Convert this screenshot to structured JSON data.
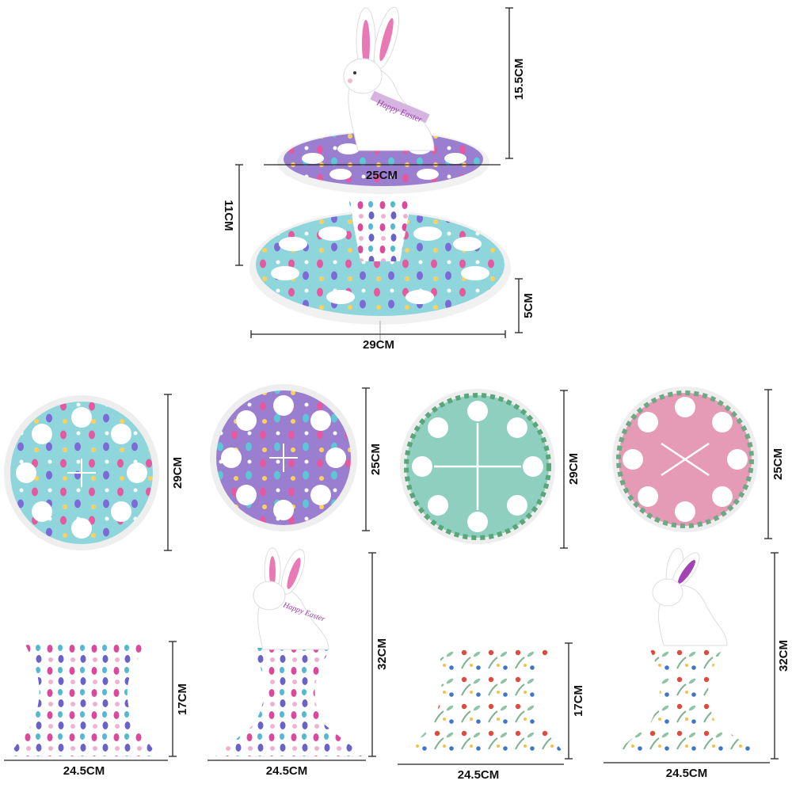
{
  "assembled": {
    "topper_text": "Happy Easter",
    "dims": {
      "topper_height": "15.5CM",
      "top_tier_diameter": "25CM",
      "tier_gap": "11CM",
      "base_height": "5CM",
      "bottom_tier_diameter": "29CM"
    }
  },
  "plates": [
    {
      "name": "blue-egg-plate",
      "size": "29CM"
    },
    {
      "name": "purple-egg-plate",
      "size": "25CM"
    },
    {
      "name": "mint-floral-plate",
      "size": "29CM"
    },
    {
      "name": "pink-floral-plate",
      "size": "25CM"
    }
  ],
  "stands": [
    {
      "name": "egg-base-stand",
      "height": "17CM",
      "width": "24.5CM"
    },
    {
      "name": "egg-bunny-stand",
      "height": "32CM",
      "width": "24.5CM",
      "topper_text": "Happy Easter"
    },
    {
      "name": "floral-base-stand",
      "height": "17CM",
      "width": "24.5CM"
    },
    {
      "name": "floral-bunny-stand",
      "height": "32CM",
      "width": "24.5CM"
    }
  ],
  "colors": {
    "blue": "#8fd6dc",
    "purple": "#9a7fd1",
    "mint": "#8ecfbf",
    "pink": "#e59ab6",
    "ear_pink": "#e879b5",
    "ear_purple": "#a342b5"
  }
}
